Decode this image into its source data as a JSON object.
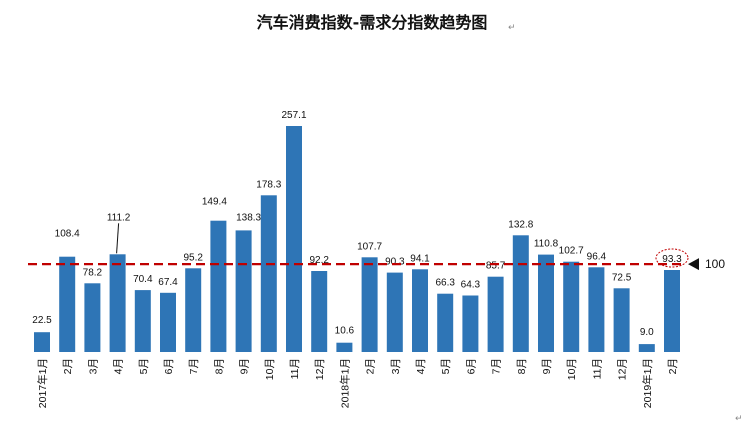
{
  "chart_data": {
    "type": "bar",
    "title": "汽车消费指数-需求分指数趋势图",
    "categories": [
      "2017年1月",
      "2月",
      "3月",
      "4月",
      "5月",
      "6月",
      "7月",
      "8月",
      "9月",
      "10月",
      "11月",
      "12月",
      "2018年1月",
      "2月",
      "3月",
      "4月",
      "5月",
      "6月",
      "7月",
      "8月",
      "9月",
      "10月",
      "11月",
      "12月",
      "2019年1月",
      "2月"
    ],
    "series": [
      {
        "values": [
          22.5,
          108.4,
          78.2,
          111.2,
          70.4,
          67.4,
          95.2,
          149.4,
          138.3,
          178.3,
          257.1,
          92.2,
          10.6,
          107.7,
          90.3,
          94.1,
          66.3,
          64.3,
          85.7,
          132.8,
          110.8,
          102.7,
          96.4,
          72.5,
          9.0,
          93.3
        ]
      }
    ],
    "value_labels": [
      "22.5",
      "108.4",
      "78.2",
      "111.2",
      "70.4",
      "67.4",
      "95.2",
      "149.4",
      "138.3",
      "178.3",
      "257.1",
      "92.2",
      "10.6",
      "107.7",
      "90.3",
      "94.1",
      "66.3",
      "64.3",
      "85.7",
      "132.8",
      "110.8",
      "102.7",
      "96.4",
      "72.5",
      "9.0",
      "93.3"
    ],
    "reference_line": {
      "value": 100,
      "label": "100",
      "color": "#c00000",
      "style": "dashed"
    },
    "highlight_index": 25,
    "ylim": [
      0,
      265
    ],
    "xlabel": "",
    "ylabel": "",
    "grid": false,
    "legend": "none",
    "colors": {
      "bar": "#2e75b6",
      "reference": "#c00000",
      "highlight_circle": "#c00000",
      "text": "#111111"
    }
  },
  "page_marks": {
    "title_mark": "↵",
    "corner_mark": "↵"
  }
}
